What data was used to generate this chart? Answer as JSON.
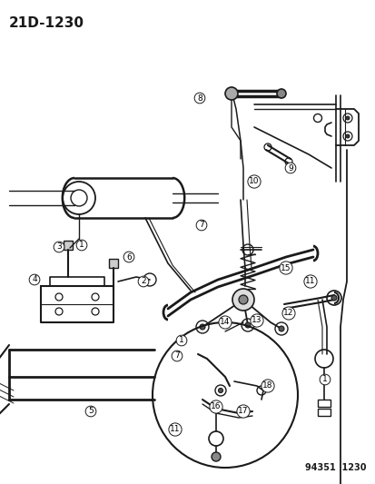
{
  "title_code": "21D-1230",
  "footer_code": "94351  1230",
  "bg_color": "#ffffff",
  "line_color": "#1a1a1a",
  "title_fontsize": 11,
  "footer_fontsize": 7,
  "label_fontsize": 6.5,
  "fig_width": 4.14,
  "fig_height": 5.33,
  "dpi": 100
}
